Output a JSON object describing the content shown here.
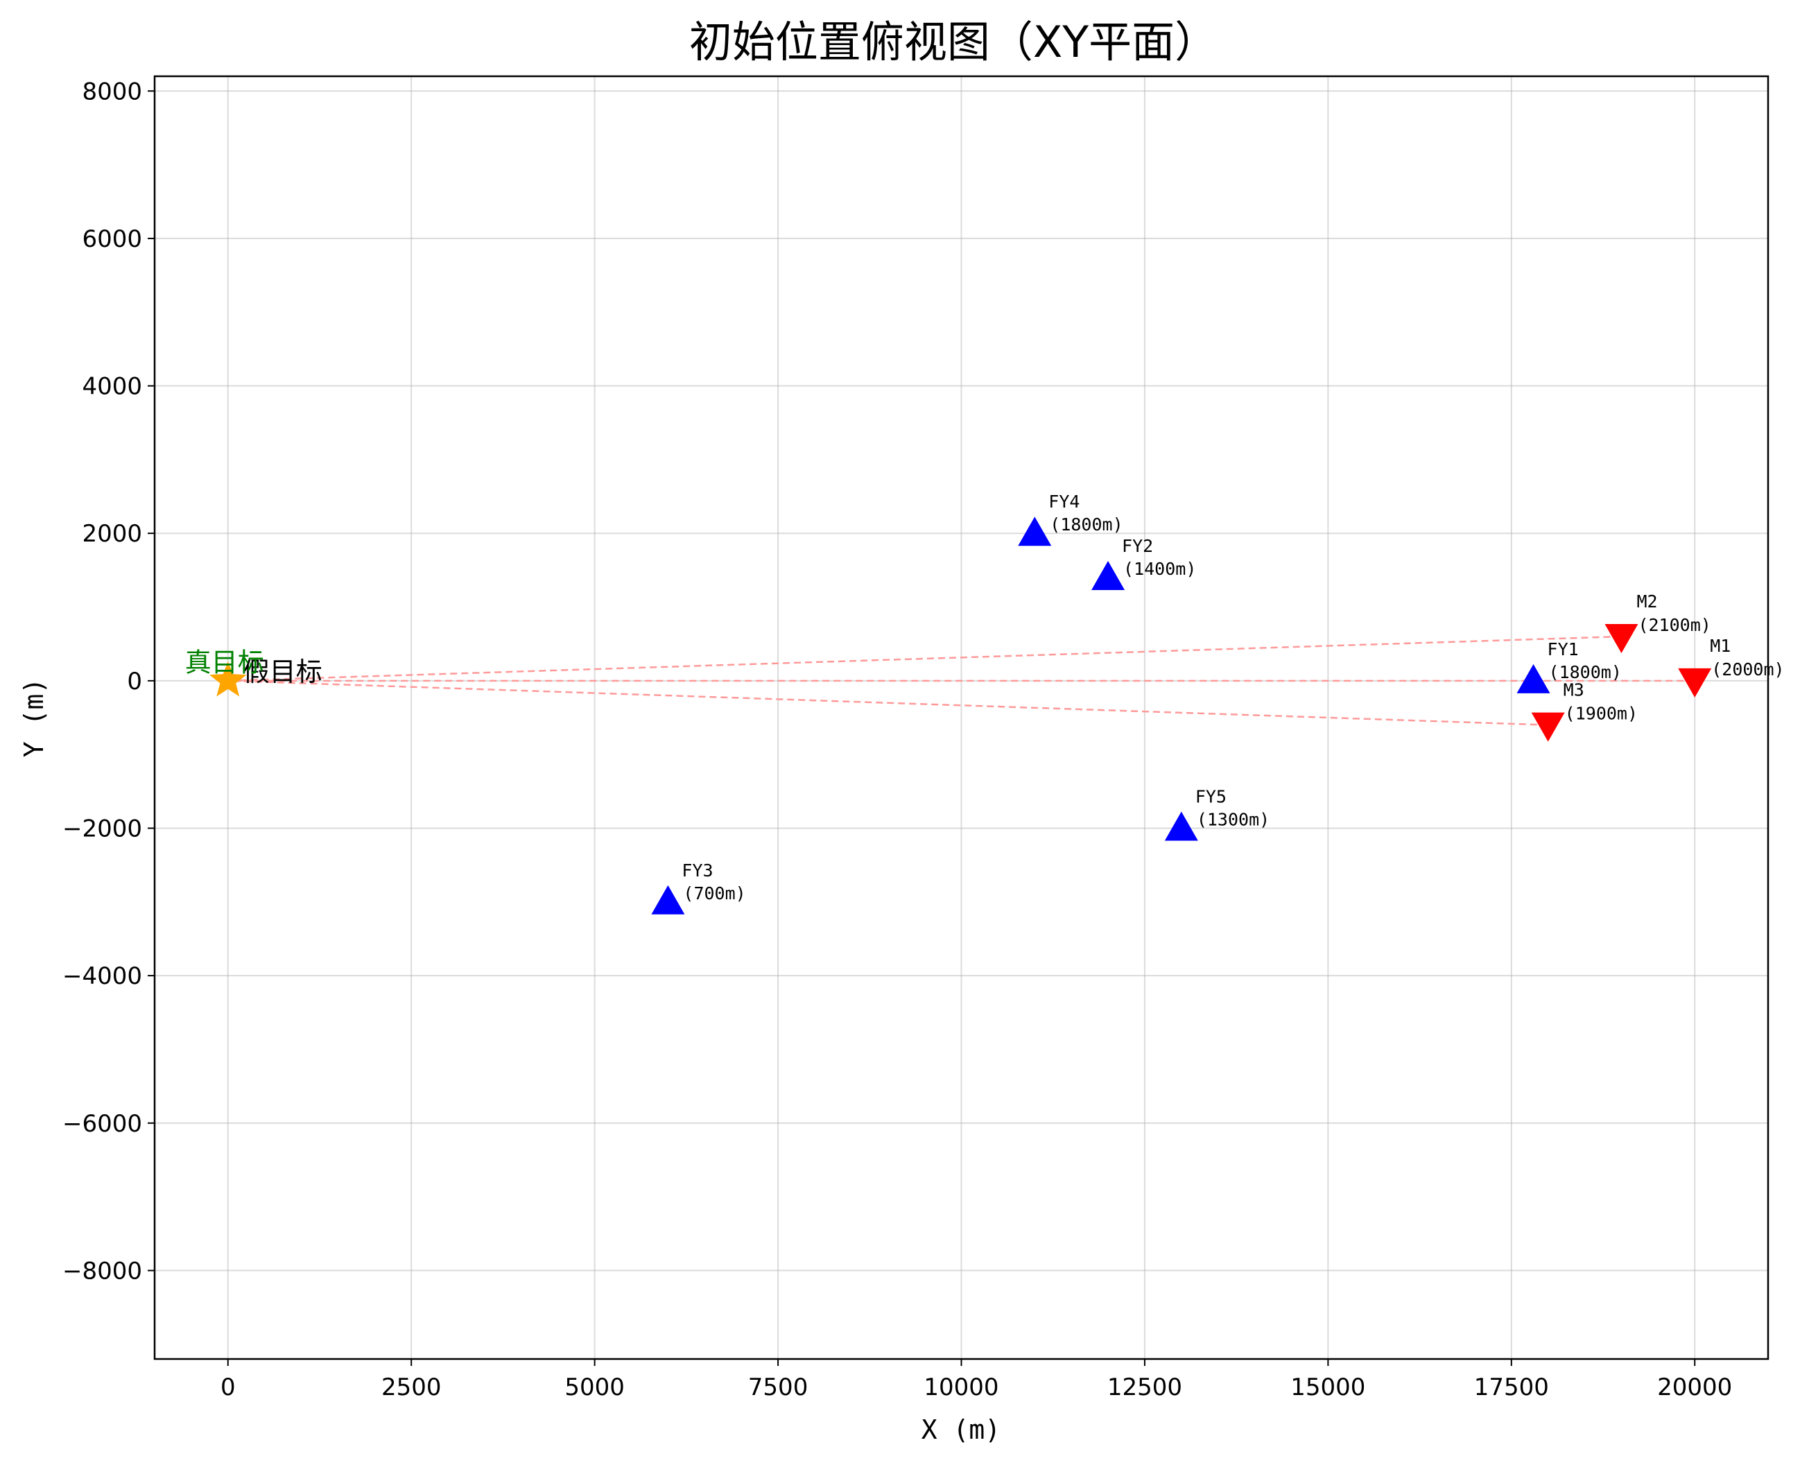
{
  "chart_data": {
    "type": "scatter",
    "title": "初始位置俯视图（XY平面）",
    "xlabel": "X (m)",
    "ylabel": "Y (m)",
    "xlim": [
      -1000,
      21000
    ],
    "ylim": [
      -9200,
      8200
    ],
    "x_ticks": [
      0,
      2500,
      5000,
      7500,
      10000,
      12500,
      15000,
      17500,
      20000
    ],
    "y_ticks": [
      -8000,
      -6000,
      -4000,
      -2000,
      0,
      2000,
      4000,
      6000,
      8000
    ],
    "grid": true,
    "colors": {
      "drone": "#0000ff",
      "missile": "#ff0000",
      "track": "#ff9999",
      "fake_target": "#ffa500",
      "true_target_label": "#008000"
    },
    "targets": [
      {
        "label": "真目标",
        "x": 0,
        "y": 200,
        "color": "#008000",
        "marker": "none"
      },
      {
        "label": "假目标",
        "x": 0,
        "y": 0,
        "color": "#000000",
        "marker": "star"
      }
    ],
    "drones": [
      {
        "name": "FY1",
        "altitude": "(1800m)",
        "x": 17800,
        "y": 0
      },
      {
        "name": "FY2",
        "altitude": "(1400m)",
        "x": 12000,
        "y": 1400
      },
      {
        "name": "FY3",
        "altitude": "(700m)",
        "x": 6000,
        "y": -3000
      },
      {
        "name": "FY4",
        "altitude": "(1800m)",
        "x": 11000,
        "y": 2000
      },
      {
        "name": "FY5",
        "altitude": "(1300m)",
        "x": 13000,
        "y": -2000
      }
    ],
    "missiles": [
      {
        "name": "M1",
        "altitude": "(2000m)",
        "x": 20000,
        "y": 0
      },
      {
        "name": "M2",
        "altitude": "(2100m)",
        "x": 19000,
        "y": 600
      },
      {
        "name": "M3",
        "altitude": "(1900m)",
        "x": 18000,
        "y": -600
      }
    ]
  }
}
